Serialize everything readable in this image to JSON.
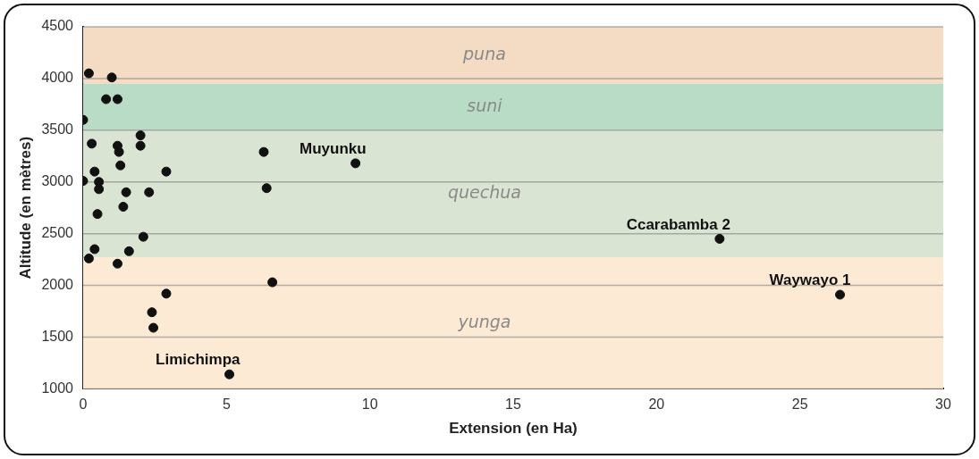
{
  "chart_data": {
    "type": "scatter",
    "xlabel": "Extension (en Ha)",
    "ylabel": "Altitude (en mètres)",
    "x": [
      0.2,
      1.0,
      0.8,
      1.2,
      0.0,
      2.0,
      0.3,
      1.2,
      2.0,
      1.25,
      1.3,
      0.4,
      2.9,
      0.0,
      0.55,
      0.55,
      1.5,
      2.3,
      1.4,
      0.5,
      2.1,
      0.4,
      1.6,
      0.2,
      1.2,
      2.9,
      2.4,
      2.45,
      5.1,
      6.3,
      9.5,
      6.4,
      6.6,
      22.2,
      26.4
    ],
    "values": [
      4050,
      4010,
      3800,
      3800,
      3600,
      3450,
      3370,
      3350,
      3350,
      3290,
      3160,
      3100,
      3100,
      3010,
      3000,
      2930,
      2900,
      2900,
      2760,
      2690,
      2470,
      2350,
      2330,
      2260,
      2210,
      1920,
      1740,
      1590,
      1140,
      3290,
      3180,
      2940,
      2030,
      2450,
      1910
    ],
    "color": "#111111",
    "marker": "circle",
    "xlim": [
      0,
      30
    ],
    "xticks": [
      0,
      5,
      10,
      15,
      20,
      25,
      30
    ],
    "ylim": [
      1000,
      4500
    ],
    "yticks": [
      1000,
      1500,
      2000,
      2500,
      3000,
      3500,
      4000,
      4500
    ],
    "grid": "y",
    "legend": false,
    "bands": [
      {
        "axis": "y",
        "from": 3950,
        "to": 4500,
        "label": "puna",
        "color": "#f3dcc3"
      },
      {
        "axis": "y",
        "from": 3500,
        "to": 3950,
        "label": "suni",
        "color": "#b9dcc6"
      },
      {
        "axis": "y",
        "from": 2270,
        "to": 3500,
        "label": "quechua",
        "color": "#d9e4d3"
      },
      {
        "axis": "y",
        "from": 1000,
        "to": 2270,
        "label": "yunga",
        "color": "#fcead5"
      }
    ],
    "annotations": [
      {
        "text": "Muyunku",
        "x": 9.5,
        "y": 3180
      },
      {
        "text": "Limichimpa",
        "x": 5.1,
        "y": 1140
      },
      {
        "text": "Ccarabamba 2",
        "x": 22.2,
        "y": 2450
      },
      {
        "text": "Waywayo 1",
        "x": 26.4,
        "y": 1910
      }
    ]
  }
}
